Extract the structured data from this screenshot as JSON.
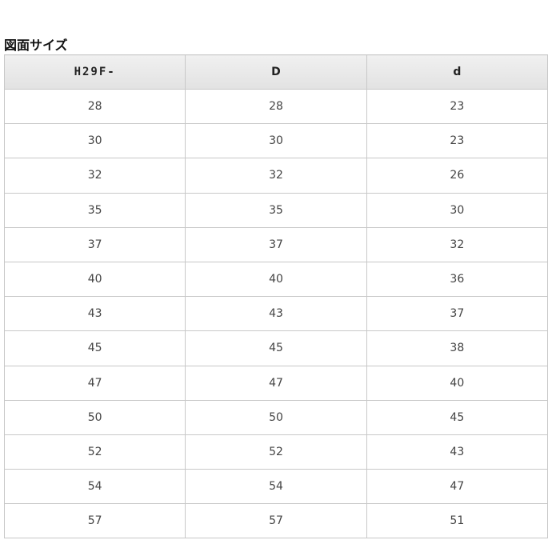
{
  "title": "図面サイズ",
  "table": {
    "headers": [
      "H29F-",
      "D",
      "d"
    ],
    "rows": [
      [
        "28",
        "28",
        "23"
      ],
      [
        "30",
        "30",
        "23"
      ],
      [
        "32",
        "32",
        "26"
      ],
      [
        "35",
        "35",
        "30"
      ],
      [
        "37",
        "37",
        "32"
      ],
      [
        "40",
        "40",
        "36"
      ],
      [
        "43",
        "43",
        "37"
      ],
      [
        "45",
        "45",
        "38"
      ],
      [
        "47",
        "47",
        "40"
      ],
      [
        "50",
        "50",
        "45"
      ],
      [
        "52",
        "52",
        "43"
      ],
      [
        "54",
        "54",
        "47"
      ],
      [
        "57",
        "57",
        "51"
      ]
    ]
  }
}
